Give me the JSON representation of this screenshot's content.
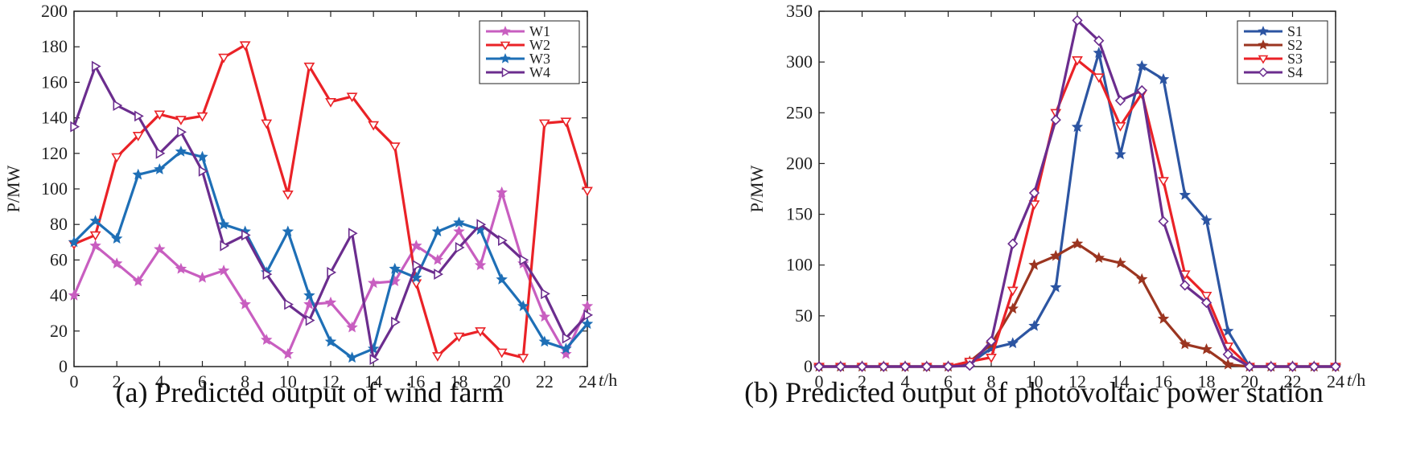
{
  "chart_data": [
    {
      "type": "line",
      "caption": "(a) Predicted output of wind farm",
      "ylabel": "P/MW",
      "xlabel_var": "t",
      "xlabel_unit": "/h",
      "xlim": [
        0,
        24
      ],
      "ylim": [
        0,
        200
      ],
      "xticks": [
        0,
        2,
        4,
        6,
        8,
        10,
        12,
        14,
        16,
        18,
        20,
        22,
        24
      ],
      "yticks": [
        0,
        20,
        40,
        60,
        80,
        100,
        120,
        140,
        160,
        180,
        200
      ],
      "legend_position": "top-right",
      "x": [
        0,
        1,
        2,
        3,
        4,
        5,
        6,
        7,
        8,
        9,
        10,
        11,
        12,
        13,
        14,
        15,
        16,
        17,
        18,
        19,
        20,
        21,
        22,
        23,
        24
      ],
      "series": [
        {
          "name": "W1",
          "color": "#c85ec0",
          "marker": "star",
          "values": [
            40,
            68,
            58,
            48,
            66,
            55,
            50,
            54,
            35,
            15,
            7,
            35,
            36,
            22,
            47,
            48,
            68,
            60,
            76,
            57,
            98,
            58,
            28,
            7,
            34
          ]
        },
        {
          "name": "W2",
          "color": "#ea2227",
          "marker": "tri-down",
          "values": [
            69,
            74,
            118,
            130,
            142,
            139,
            141,
            174,
            181,
            137,
            97,
            169,
            149,
            152,
            136,
            124,
            47,
            6,
            17,
            20,
            8,
            5,
            137,
            138,
            99
          ]
        },
        {
          "name": "W3",
          "color": "#1e6fb6",
          "marker": "star",
          "values": [
            70,
            82,
            72,
            108,
            111,
            121,
            118,
            80,
            76,
            53,
            76,
            40,
            14,
            5,
            10,
            55,
            50,
            76,
            81,
            77,
            49,
            34,
            14,
            10,
            24
          ]
        },
        {
          "name": "W4",
          "color": "#6b2d8e",
          "marker": "tri-right",
          "values": [
            135,
            169,
            147,
            141,
            120,
            132,
            110,
            68,
            74,
            52,
            35,
            26,
            53,
            75,
            4,
            25,
            57,
            52,
            67,
            80,
            71,
            60,
            41,
            16,
            29
          ]
        }
      ]
    },
    {
      "type": "line",
      "caption": "(b) Predicted output of photovoltaic power station",
      "ylabel": "P/MW",
      "xlabel_var": "t",
      "xlabel_unit": "/h",
      "xlim": [
        0,
        24
      ],
      "ylim": [
        0,
        350
      ],
      "xticks": [
        0,
        2,
        4,
        6,
        8,
        10,
        12,
        14,
        16,
        18,
        20,
        22,
        24
      ],
      "yticks": [
        0,
        50,
        100,
        150,
        200,
        250,
        300,
        350
      ],
      "legend_position": "top-right",
      "x": [
        0,
        1,
        2,
        3,
        4,
        5,
        6,
        7,
        8,
        9,
        10,
        11,
        12,
        13,
        14,
        15,
        16,
        17,
        18,
        19,
        20,
        21,
        22,
        23,
        24
      ],
      "series": [
        {
          "name": "S1",
          "color": "#2c55a2",
          "marker": "star",
          "values": [
            0,
            0,
            0,
            0,
            0,
            0,
            0,
            3,
            18,
            23,
            40,
            78,
            236,
            309,
            209,
            296,
            283,
            169,
            144,
            35,
            0,
            0,
            0,
            0,
            0
          ]
        },
        {
          "name": "S2",
          "color": "#9b3520",
          "marker": "star",
          "values": [
            0,
            0,
            0,
            0,
            0,
            0,
            0,
            5,
            22,
            57,
            100,
            109,
            121,
            107,
            102,
            86,
            47,
            22,
            17,
            2,
            0,
            0,
            0,
            0,
            0
          ]
        },
        {
          "name": "S3",
          "color": "#ea2227",
          "marker": "tri-down",
          "values": [
            0,
            0,
            0,
            0,
            0,
            0,
            0,
            5,
            9,
            75,
            160,
            250,
            302,
            285,
            237,
            269,
            183,
            91,
            70,
            20,
            0,
            0,
            0,
            0,
            0
          ]
        },
        {
          "name": "S4",
          "color": "#6b2d8e",
          "marker": "diamond",
          "values": [
            0,
            0,
            0,
            0,
            0,
            0,
            0,
            1,
            25,
            121,
            171,
            243,
            341,
            321,
            262,
            272,
            143,
            80,
            63,
            12,
            0,
            0,
            0,
            0,
            0
          ]
        }
      ]
    }
  ]
}
